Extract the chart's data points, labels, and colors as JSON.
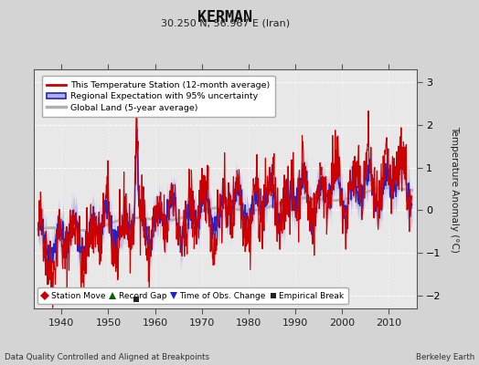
{
  "title": "KERMAN",
  "subtitle": "30.250 N, 56.967 E (Iran)",
  "ylabel": "Temperature Anomaly (°C)",
  "xlabel_bottom_left": "Data Quality Controlled and Aligned at Breakpoints",
  "xlabel_bottom_right": "Berkeley Earth",
  "xlim": [
    1934,
    2016
  ],
  "ylim": [
    -2.3,
    3.3
  ],
  "yticks": [
    -2,
    -1,
    0,
    1,
    2,
    3
  ],
  "xticks": [
    1940,
    1950,
    1960,
    1970,
    1980,
    1990,
    2000,
    2010
  ],
  "bg_color": "#d4d4d4",
  "plot_bg_color": "#e8e8e8",
  "station_line_color": "#cc0000",
  "regional_line_color": "#2222cc",
  "regional_fill_color": "#b0b0e8",
  "global_line_color": "#b0b0b0",
  "empirical_break_year": 1956.0,
  "empirical_break_value": -2.08,
  "legend1_labels": [
    "This Temperature Station (12-month average)",
    "Regional Expectation with 95% uncertainty",
    "Global Land (5-year average)"
  ],
  "legend2_labels": [
    "Station Move",
    "Record Gap",
    "Time of Obs. Change",
    "Empirical Break"
  ],
  "legend2_colors": [
    "#cc0000",
    "#006600",
    "#2222cc",
    "#222222"
  ],
  "legend2_markers": [
    "D",
    "^",
    "v",
    "s"
  ]
}
